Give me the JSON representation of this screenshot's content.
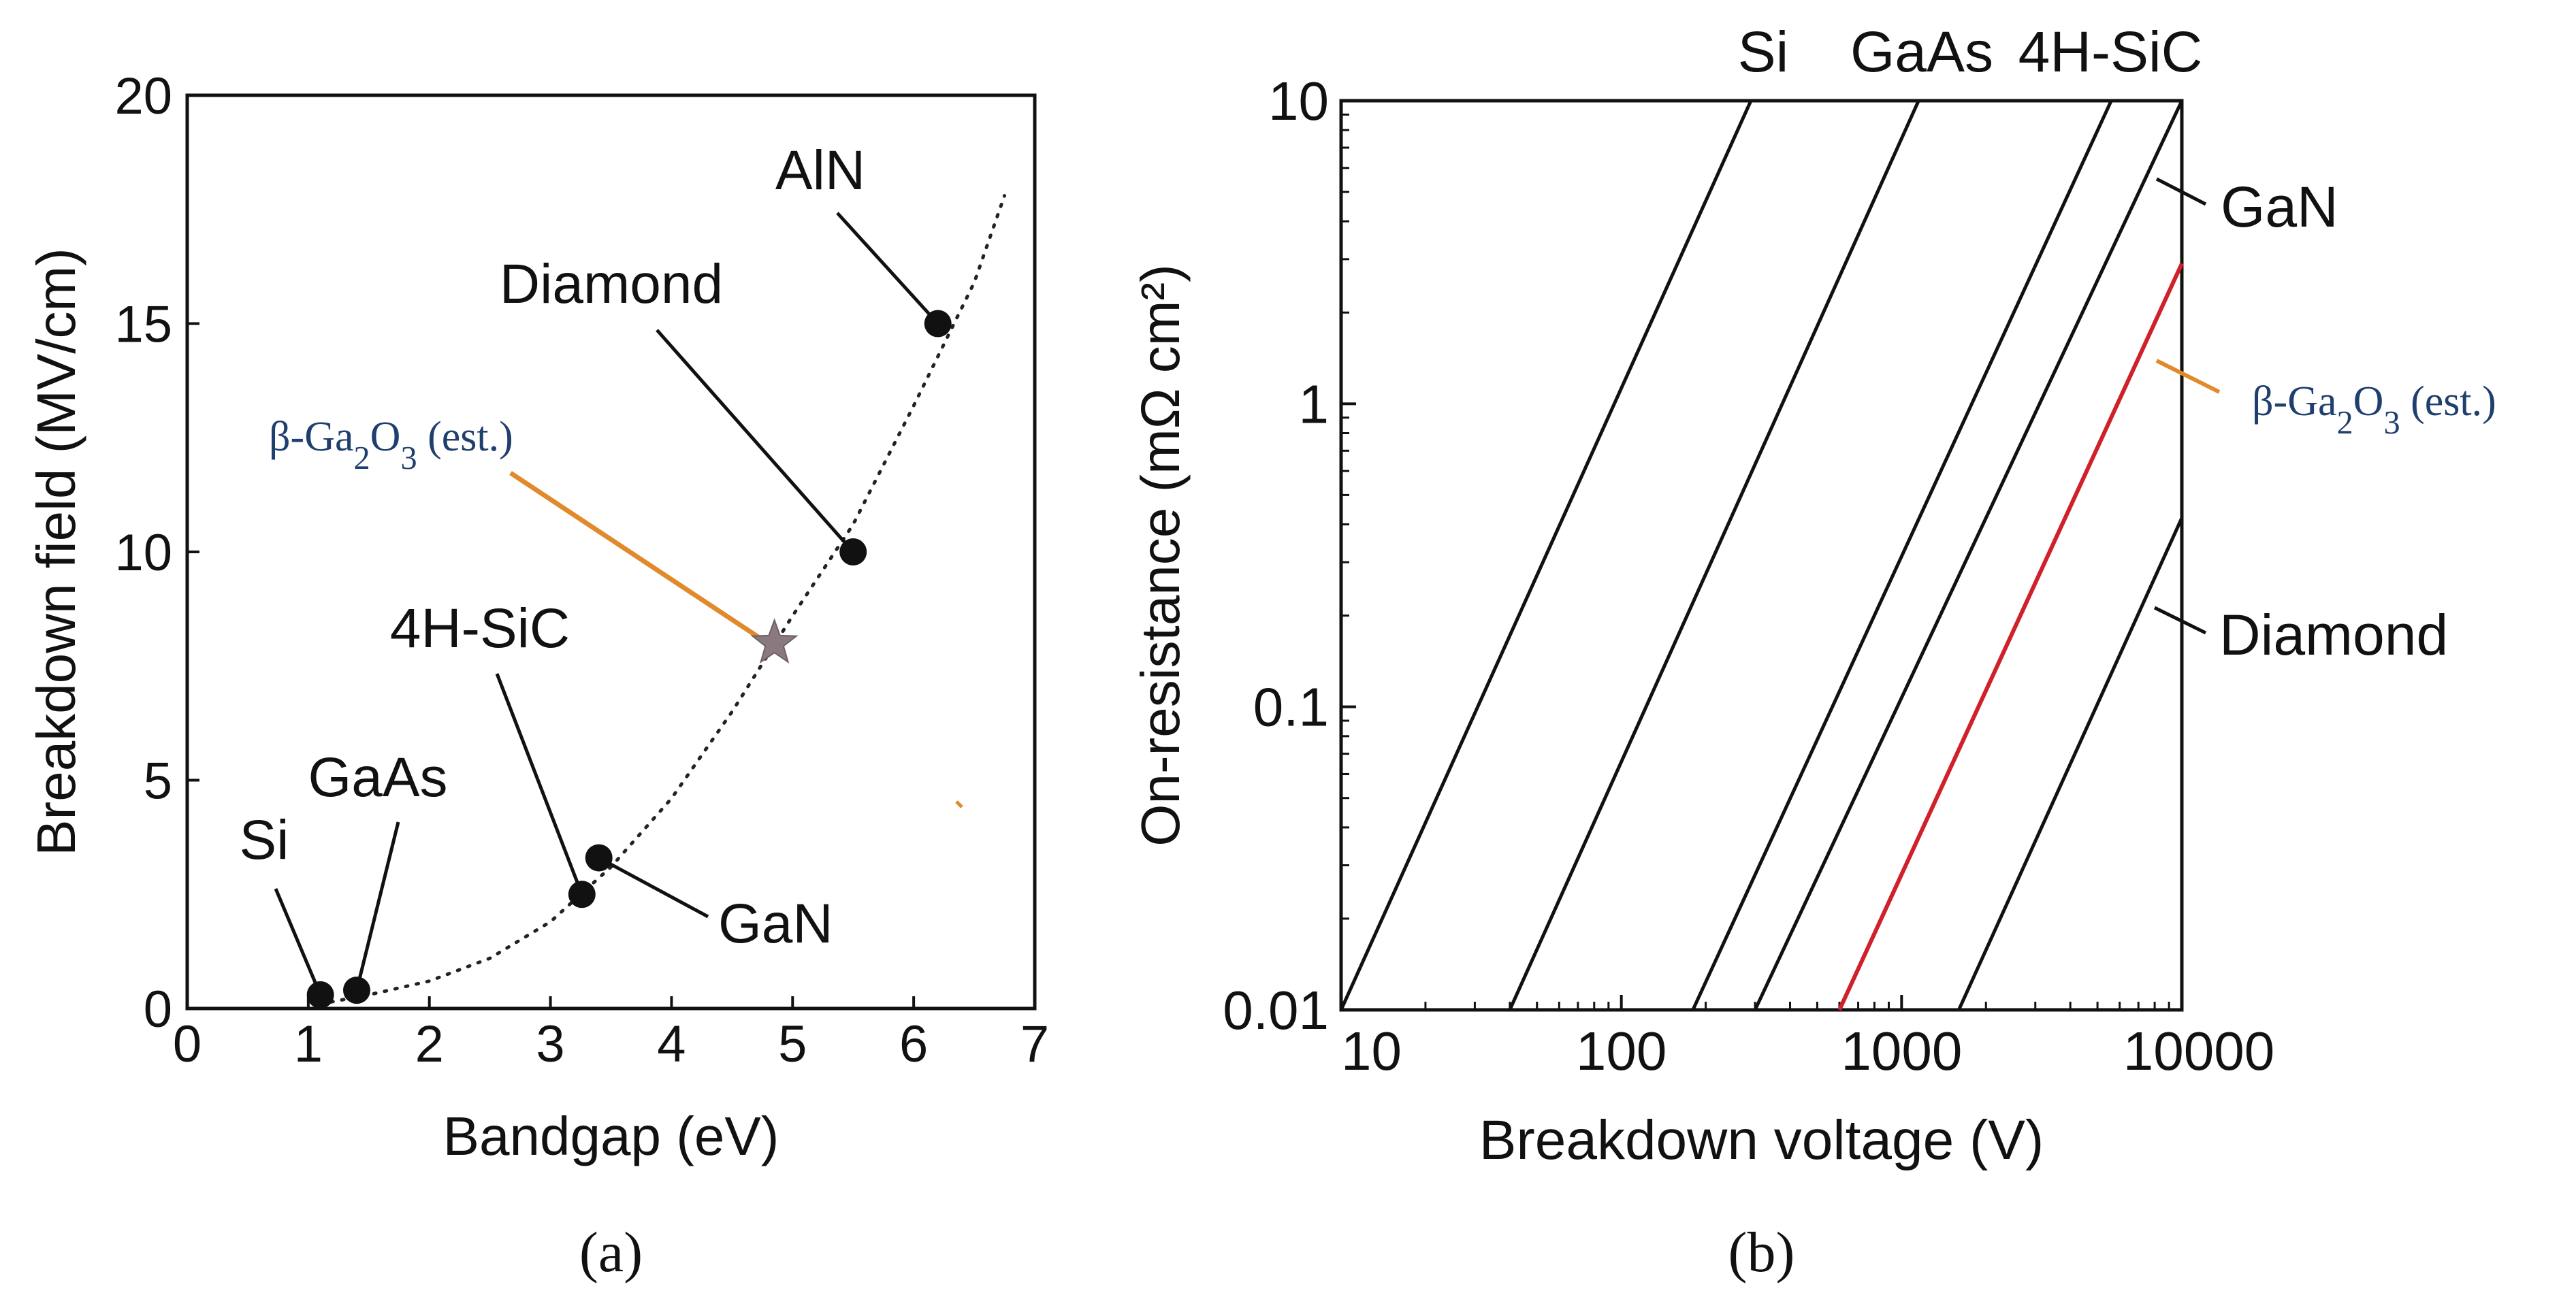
{
  "chart_data": [
    {
      "panel_label": "(a)",
      "type": "scatter",
      "xlabel": "Bandgap (eV)",
      "ylabel": "Breakdown field (MV/cm)",
      "xlim": [
        0,
        7
      ],
      "ylim": [
        0,
        20
      ],
      "x_ticks": [
        "0",
        "1",
        "2",
        "3",
        "4",
        "5",
        "6",
        "7"
      ],
      "y_ticks": [
        "0",
        "5",
        "10",
        "15",
        "20"
      ],
      "grid": false,
      "points": [
        {
          "name": "Si",
          "x": 1.1,
          "y": 0.3
        },
        {
          "name": "GaAs",
          "x": 1.4,
          "y": 0.4
        },
        {
          "name": "4H-SiC",
          "x": 3.26,
          "y": 2.5
        },
        {
          "name": "GaN",
          "x": 3.4,
          "y": 3.3
        },
        {
          "name": "Diamond",
          "x": 5.5,
          "y": 10
        },
        {
          "name": "AlN",
          "x": 6.2,
          "y": 15
        }
      ],
      "highlight_point": {
        "name": "β-Ga2O3 (est.)",
        "x": 4.85,
        "y": 8,
        "marker": "star",
        "label_color": "#1f3f6e",
        "leader_color": "#e08a2c"
      },
      "trend_curve": {
        "style": "dotted",
        "x": [
          1.1,
          1.5,
          2.0,
          2.5,
          3.0,
          3.5,
          4.0,
          4.5,
          5.0,
          5.5,
          6.0,
          6.5,
          6.75
        ],
        "y": [
          0.1,
          0.3,
          0.6,
          1.1,
          1.9,
          3.1,
          4.6,
          6.5,
          8.6,
          10.6,
          13.2,
          15.9,
          17.8
        ]
      }
    },
    {
      "panel_label": "(b)",
      "type": "line",
      "xscale": "log",
      "yscale": "log",
      "xlabel": "Breakdown voltage (V)",
      "ylabel": "On-resistance (mΩ cm²)",
      "xlim": [
        10,
        10000
      ],
      "ylim": [
        0.01,
        10
      ],
      "x_ticks": [
        "10",
        "100",
        "1000",
        "10000"
      ],
      "y_ticks": [
        "0.01",
        "0.1",
        "1",
        "10"
      ],
      "grid": false,
      "series": [
        {
          "name": "Si",
          "x": [
            10,
            290
          ],
          "y": [
            0.01,
            10
          ],
          "color": "#111111"
        },
        {
          "name": "GaAs",
          "x": [
            40,
            1150
          ],
          "y": [
            0.01,
            10
          ],
          "color": "#111111"
        },
        {
          "name": "4H-SiC",
          "x": [
            180,
            5600
          ],
          "y": [
            0.01,
            10
          ],
          "color": "#111111"
        },
        {
          "name": "GaN",
          "x": [
            300,
            10000
          ],
          "y": [
            0.01,
            10
          ],
          "color": "#111111"
        },
        {
          "name": "β-Ga2O3 (est.)",
          "x": [
            600,
            10000
          ],
          "y": [
            0.01,
            2.9
          ],
          "color": "#d0202a"
        },
        {
          "name": "Diamond",
          "x": [
            1600,
            10000
          ],
          "y": [
            0.01,
            0.42
          ],
          "color": "#111111"
        }
      ]
    }
  ]
}
